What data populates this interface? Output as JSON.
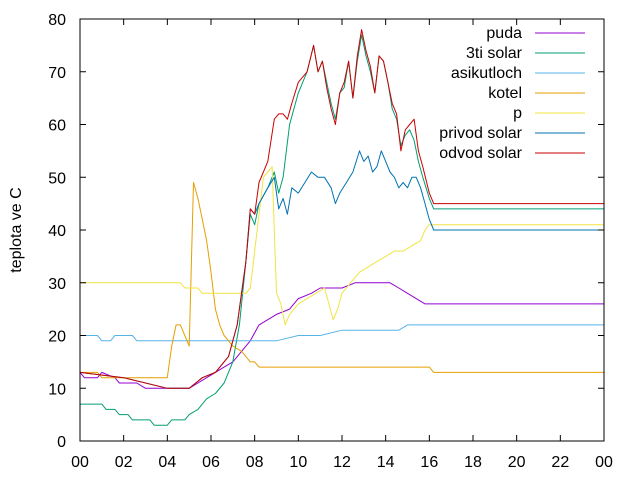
{
  "chart_data": {
    "type": "line",
    "title": "",
    "xlabel": "",
    "ylabel": "teplota ve C",
    "xlim": [
      0,
      24
    ],
    "ylim": [
      0,
      80
    ],
    "x_tick_labels": [
      "00",
      "02",
      "04",
      "06",
      "08",
      "10",
      "12",
      "14",
      "16",
      "18",
      "20",
      "22",
      "00"
    ],
    "y_tick_labels": [
      "0",
      "10",
      "20",
      "30",
      "40",
      "50",
      "60",
      "70",
      "80"
    ],
    "grid": false,
    "legend_position": "top-right",
    "series": [
      {
        "name": "puda",
        "color": "#9400d3",
        "points": [
          [
            0,
            13
          ],
          [
            0.2,
            12
          ],
          [
            0.8,
            12
          ],
          [
            1.0,
            13
          ],
          [
            1.6,
            12
          ],
          [
            1.8,
            11
          ],
          [
            2.6,
            11
          ],
          [
            3.0,
            10
          ],
          [
            3.4,
            10
          ],
          [
            4.4,
            10
          ],
          [
            5.0,
            10
          ],
          [
            5.4,
            11
          ],
          [
            5.8,
            12
          ],
          [
            6.2,
            13
          ],
          [
            6.6,
            14
          ],
          [
            7.0,
            15
          ],
          [
            7.4,
            17
          ],
          [
            7.8,
            19
          ],
          [
            8.2,
            22
          ],
          [
            8.6,
            23
          ],
          [
            9.0,
            24
          ],
          [
            9.6,
            25
          ],
          [
            10.0,
            27
          ],
          [
            10.6,
            28
          ],
          [
            11.0,
            29
          ],
          [
            11.6,
            29
          ],
          [
            12.0,
            29
          ],
          [
            12.6,
            30
          ],
          [
            13.0,
            30
          ],
          [
            13.6,
            30
          ],
          [
            14.2,
            30
          ],
          [
            14.6,
            29
          ],
          [
            15.0,
            28
          ],
          [
            15.4,
            27
          ],
          [
            15.8,
            26
          ],
          [
            16.2,
            26
          ],
          [
            17.0,
            26
          ],
          [
            20.0,
            26
          ],
          [
            24.0,
            26
          ]
        ]
      },
      {
        "name": "3ti solar",
        "color": "#009e73",
        "points": [
          [
            0,
            7
          ],
          [
            1.0,
            7
          ],
          [
            1.2,
            6
          ],
          [
            1.6,
            6
          ],
          [
            1.8,
            5
          ],
          [
            2.2,
            5
          ],
          [
            2.4,
            4
          ],
          [
            3.2,
            4
          ],
          [
            3.4,
            3
          ],
          [
            4.0,
            3
          ],
          [
            4.2,
            4
          ],
          [
            4.8,
            4
          ],
          [
            5.0,
            5
          ],
          [
            5.4,
            6
          ],
          [
            5.8,
            8
          ],
          [
            6.2,
            9
          ],
          [
            6.6,
            11
          ],
          [
            7.0,
            15
          ],
          [
            7.3,
            22
          ],
          [
            7.6,
            34
          ],
          [
            7.8,
            43
          ],
          [
            8.0,
            41
          ],
          [
            8.2,
            45
          ],
          [
            8.6,
            48
          ],
          [
            8.9,
            51
          ],
          [
            9.1,
            47
          ],
          [
            9.3,
            50
          ],
          [
            9.6,
            60
          ],
          [
            10.0,
            66
          ],
          [
            10.4,
            70
          ],
          [
            10.7,
            75
          ],
          [
            10.9,
            70
          ],
          [
            11.1,
            72
          ],
          [
            11.3,
            68
          ],
          [
            11.5,
            64
          ],
          [
            11.7,
            61
          ],
          [
            11.9,
            66
          ],
          [
            12.1,
            67
          ],
          [
            12.3,
            72
          ],
          [
            12.5,
            65
          ],
          [
            12.7,
            72
          ],
          [
            12.9,
            77
          ],
          [
            13.1,
            73
          ],
          [
            13.3,
            70
          ],
          [
            13.5,
            66
          ],
          [
            13.7,
            73
          ],
          [
            13.9,
            72
          ],
          [
            14.1,
            68
          ],
          [
            14.3,
            63
          ],
          [
            14.5,
            61
          ],
          [
            14.7,
            56
          ],
          [
            14.9,
            58
          ],
          [
            15.1,
            59
          ],
          [
            15.3,
            57
          ],
          [
            15.5,
            53
          ],
          [
            15.7,
            50
          ],
          [
            16.0,
            46
          ],
          [
            16.2,
            44
          ],
          [
            17.0,
            44
          ],
          [
            20.0,
            44
          ],
          [
            24.0,
            44
          ]
        ]
      },
      {
        "name": "asikutloch",
        "color": "#56b4e9",
        "points": [
          [
            0,
            20
          ],
          [
            0.8,
            20
          ],
          [
            1.0,
            19
          ],
          [
            1.4,
            19
          ],
          [
            1.6,
            20
          ],
          [
            2.4,
            20
          ],
          [
            2.6,
            19
          ],
          [
            3.4,
            19
          ],
          [
            4.6,
            19
          ],
          [
            6.0,
            19
          ],
          [
            7.0,
            19
          ],
          [
            8.0,
            19
          ],
          [
            9.0,
            19
          ],
          [
            10.0,
            20
          ],
          [
            11.0,
            20
          ],
          [
            12.0,
            21
          ],
          [
            13.0,
            21
          ],
          [
            14.0,
            21
          ],
          [
            14.6,
            21
          ],
          [
            15.0,
            22
          ],
          [
            16.0,
            22
          ],
          [
            18.0,
            22
          ],
          [
            20.0,
            22
          ],
          [
            24.0,
            22
          ]
        ]
      },
      {
        "name": "kotel",
        "color": "#e69f00",
        "points": [
          [
            0,
            13
          ],
          [
            0.8,
            13
          ],
          [
            1.0,
            12
          ],
          [
            2.0,
            12
          ],
          [
            3.0,
            12
          ],
          [
            3.8,
            12
          ],
          [
            4.0,
            12
          ],
          [
            4.2,
            18
          ],
          [
            4.4,
            22
          ],
          [
            4.6,
            22
          ],
          [
            4.8,
            20
          ],
          [
            5.0,
            18
          ],
          [
            5.2,
            49
          ],
          [
            5.4,
            46
          ],
          [
            5.6,
            42
          ],
          [
            5.8,
            38
          ],
          [
            6.0,
            32
          ],
          [
            6.2,
            25
          ],
          [
            6.4,
            22
          ],
          [
            6.6,
            20
          ],
          [
            6.8,
            19
          ],
          [
            7.0,
            18
          ],
          [
            7.4,
            17
          ],
          [
            7.6,
            16
          ],
          [
            7.8,
            15
          ],
          [
            8.0,
            15
          ],
          [
            8.2,
            14
          ],
          [
            9.0,
            14
          ],
          [
            10.0,
            14
          ],
          [
            12.0,
            14
          ],
          [
            14.0,
            14
          ],
          [
            15.0,
            14
          ],
          [
            16.0,
            14
          ],
          [
            16.2,
            13
          ],
          [
            18.0,
            13
          ],
          [
            20.0,
            13
          ],
          [
            24.0,
            13
          ]
        ]
      },
      {
        "name": "p",
        "color": "#f0e442",
        "points": [
          [
            0,
            30
          ],
          [
            2.0,
            30
          ],
          [
            4.0,
            30
          ],
          [
            4.6,
            30
          ],
          [
            4.8,
            29
          ],
          [
            5.4,
            29
          ],
          [
            5.6,
            28
          ],
          [
            6.6,
            28
          ],
          [
            7.6,
            28
          ],
          [
            7.8,
            29
          ],
          [
            8.4,
            50
          ],
          [
            8.6,
            51
          ],
          [
            8.8,
            52
          ],
          [
            9.0,
            28
          ],
          [
            9.2,
            26
          ],
          [
            9.4,
            22
          ],
          [
            9.6,
            24
          ],
          [
            9.8,
            25
          ],
          [
            10.0,
            26
          ],
          [
            10.4,
            27
          ],
          [
            10.8,
            28
          ],
          [
            11.2,
            29
          ],
          [
            11.6,
            23
          ],
          [
            11.8,
            25
          ],
          [
            12.0,
            28
          ],
          [
            12.4,
            30
          ],
          [
            12.8,
            32
          ],
          [
            13.2,
            33
          ],
          [
            13.6,
            34
          ],
          [
            14.0,
            35
          ],
          [
            14.4,
            36
          ],
          [
            14.8,
            36
          ],
          [
            15.2,
            37
          ],
          [
            15.6,
            38
          ],
          [
            15.8,
            40
          ],
          [
            16.0,
            41
          ],
          [
            16.2,
            41
          ],
          [
            17.0,
            41
          ],
          [
            20.0,
            41
          ],
          [
            24.0,
            41
          ]
        ]
      },
      {
        "name": "privod solar",
        "color": "#0072b2",
        "points": [
          [
            0,
            13
          ],
          [
            2.0,
            12
          ],
          [
            4.0,
            10
          ],
          [
            5.0,
            10
          ],
          [
            5.6,
            12
          ],
          [
            6.2,
            13
          ],
          [
            6.8,
            16
          ],
          [
            7.2,
            22
          ],
          [
            7.6,
            34
          ],
          [
            7.8,
            44
          ],
          [
            8.0,
            43
          ],
          [
            8.2,
            45
          ],
          [
            8.6,
            48
          ],
          [
            8.9,
            50
          ],
          [
            9.1,
            44
          ],
          [
            9.3,
            46
          ],
          [
            9.5,
            43
          ],
          [
            9.7,
            48
          ],
          [
            10.0,
            47
          ],
          [
            10.3,
            49
          ],
          [
            10.6,
            51
          ],
          [
            10.9,
            50
          ],
          [
            11.2,
            50
          ],
          [
            11.5,
            48
          ],
          [
            11.7,
            45
          ],
          [
            11.9,
            47
          ],
          [
            12.2,
            49
          ],
          [
            12.5,
            51
          ],
          [
            12.8,
            55
          ],
          [
            13.0,
            53
          ],
          [
            13.2,
            54
          ],
          [
            13.4,
            51
          ],
          [
            13.6,
            52
          ],
          [
            13.8,
            55
          ],
          [
            14.0,
            53
          ],
          [
            14.2,
            51
          ],
          [
            14.4,
            50
          ],
          [
            14.6,
            48
          ],
          [
            14.8,
            49
          ],
          [
            15.0,
            48
          ],
          [
            15.2,
            50
          ],
          [
            15.4,
            50
          ],
          [
            15.6,
            48
          ],
          [
            15.8,
            45
          ],
          [
            16.0,
            42
          ],
          [
            16.2,
            40
          ],
          [
            17.0,
            40
          ],
          [
            20.0,
            40
          ],
          [
            24.0,
            40
          ]
        ]
      },
      {
        "name": "odvod solar",
        "color": "#cc0000",
        "points": [
          [
            0,
            13
          ],
          [
            2.0,
            12
          ],
          [
            4.0,
            10
          ],
          [
            5.0,
            10
          ],
          [
            5.6,
            12
          ],
          [
            6.2,
            13
          ],
          [
            6.8,
            16
          ],
          [
            7.2,
            22
          ],
          [
            7.6,
            34
          ],
          [
            7.8,
            44
          ],
          [
            8.0,
            43
          ],
          [
            8.2,
            49
          ],
          [
            8.6,
            53
          ],
          [
            8.9,
            61
          ],
          [
            9.1,
            62
          ],
          [
            9.3,
            62
          ],
          [
            9.5,
            61
          ],
          [
            9.7,
            64
          ],
          [
            10.0,
            68
          ],
          [
            10.4,
            70
          ],
          [
            10.7,
            75
          ],
          [
            10.9,
            70
          ],
          [
            11.1,
            72
          ],
          [
            11.3,
            67
          ],
          [
            11.5,
            63
          ],
          [
            11.7,
            60
          ],
          [
            11.9,
            66
          ],
          [
            12.1,
            68
          ],
          [
            12.3,
            72
          ],
          [
            12.5,
            65
          ],
          [
            12.7,
            73
          ],
          [
            12.9,
            78
          ],
          [
            13.1,
            74
          ],
          [
            13.3,
            71
          ],
          [
            13.5,
            66
          ],
          [
            13.7,
            73
          ],
          [
            13.9,
            72
          ],
          [
            14.1,
            68
          ],
          [
            14.3,
            64
          ],
          [
            14.5,
            62
          ],
          [
            14.7,
            55
          ],
          [
            14.9,
            59
          ],
          [
            15.1,
            60
          ],
          [
            15.3,
            61
          ],
          [
            15.5,
            55
          ],
          [
            15.7,
            52
          ],
          [
            16.0,
            47
          ],
          [
            16.2,
            45
          ],
          [
            17.0,
            45
          ],
          [
            20.0,
            45
          ],
          [
            24.0,
            45
          ]
        ]
      }
    ]
  }
}
